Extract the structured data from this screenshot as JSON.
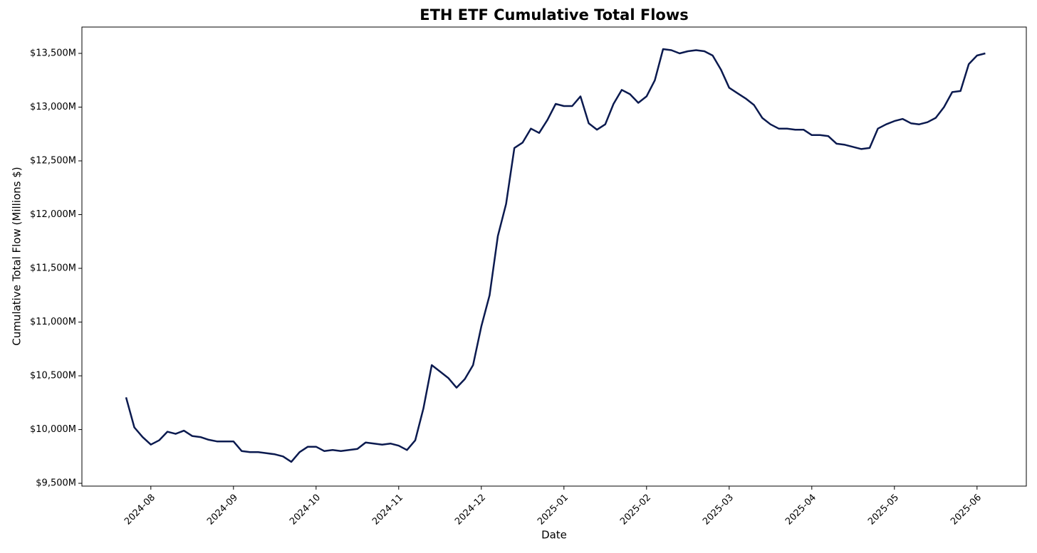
{
  "chart_data": {
    "type": "line",
    "title": "ETH ETF Cumulative Total Flows",
    "xlabel": "Date",
    "ylabel": "Cumulative Total Flow (Millions $)",
    "categories": [
      null,
      null,
      null,
      "2024-08",
      null,
      null,
      null,
      null,
      null,
      null,
      null,
      null,
      null,
      "2024-09",
      null,
      null,
      null,
      null,
      null,
      null,
      null,
      null,
      null,
      "2024-10",
      null,
      null,
      null,
      null,
      null,
      null,
      null,
      null,
      null,
      "2024-11",
      null,
      null,
      null,
      null,
      null,
      null,
      null,
      null,
      null,
      "2024-12",
      null,
      null,
      null,
      null,
      null,
      null,
      null,
      null,
      null,
      "2025-01",
      null,
      null,
      null,
      null,
      null,
      null,
      null,
      null,
      null,
      "2025-02",
      null,
      null,
      null,
      null,
      null,
      null,
      null,
      null,
      null,
      "2025-03",
      null,
      null,
      null,
      null,
      null,
      null,
      null,
      null,
      null,
      "2025-04",
      null,
      null,
      null,
      null,
      null,
      null,
      null,
      null,
      null,
      "2025-05",
      null,
      null,
      null,
      null,
      null,
      null,
      null,
      null,
      null,
      "2025-06",
      null
    ],
    "series": [
      {
        "name": "Cumulative Total Flow",
        "color": "#0b1a4f",
        "values": [
          10300,
          10020,
          9930,
          9860,
          9900,
          9980,
          9960,
          9990,
          9940,
          9930,
          9905,
          9890,
          9890,
          9890,
          9800,
          9790,
          9790,
          9780,
          9770,
          9750,
          9700,
          9790,
          9840,
          9840,
          9800,
          9810,
          9800,
          9810,
          9820,
          9880,
          9870,
          9860,
          9870,
          9850,
          9810,
          9900,
          10200,
          10600,
          10540,
          10480,
          10390,
          10470,
          10600,
          10960,
          11250,
          11800,
          12100,
          12620,
          12670,
          12800,
          12760,
          12880,
          13030,
          13010,
          13010,
          13100,
          12850,
          12790,
          12840,
          13030,
          13160,
          13120,
          13040,
          13100,
          13250,
          13540,
          13530,
          13500,
          13520,
          13530,
          13520,
          13480,
          13350,
          13180,
          13130,
          13080,
          13020,
          12900,
          12840,
          12800,
          12800,
          12790,
          12790,
          12740,
          12740,
          12730,
          12660,
          12650,
          12630,
          12610,
          12620,
          12800,
          12840,
          12870,
          12890,
          12850,
          12840,
          12860,
          12900,
          13000,
          13140,
          13150,
          13400,
          13480,
          13500
        ]
      }
    ],
    "ylim": [
      9474,
      13745
    ],
    "yticks": [
      {
        "value": 9500,
        "label": "$9,500M"
      },
      {
        "value": 10000,
        "label": "$10,000M"
      },
      {
        "value": 10500,
        "label": "$10,500M"
      },
      {
        "value": 11000,
        "label": "$11,000M"
      },
      {
        "value": 11500,
        "label": "$11,500M"
      },
      {
        "value": 12000,
        "label": "$12,000M"
      },
      {
        "value": 12500,
        "label": "$12,500M"
      },
      {
        "value": 13000,
        "label": "$13,000M"
      },
      {
        "value": 13500,
        "label": "$13,500M"
      }
    ],
    "grid": false
  }
}
